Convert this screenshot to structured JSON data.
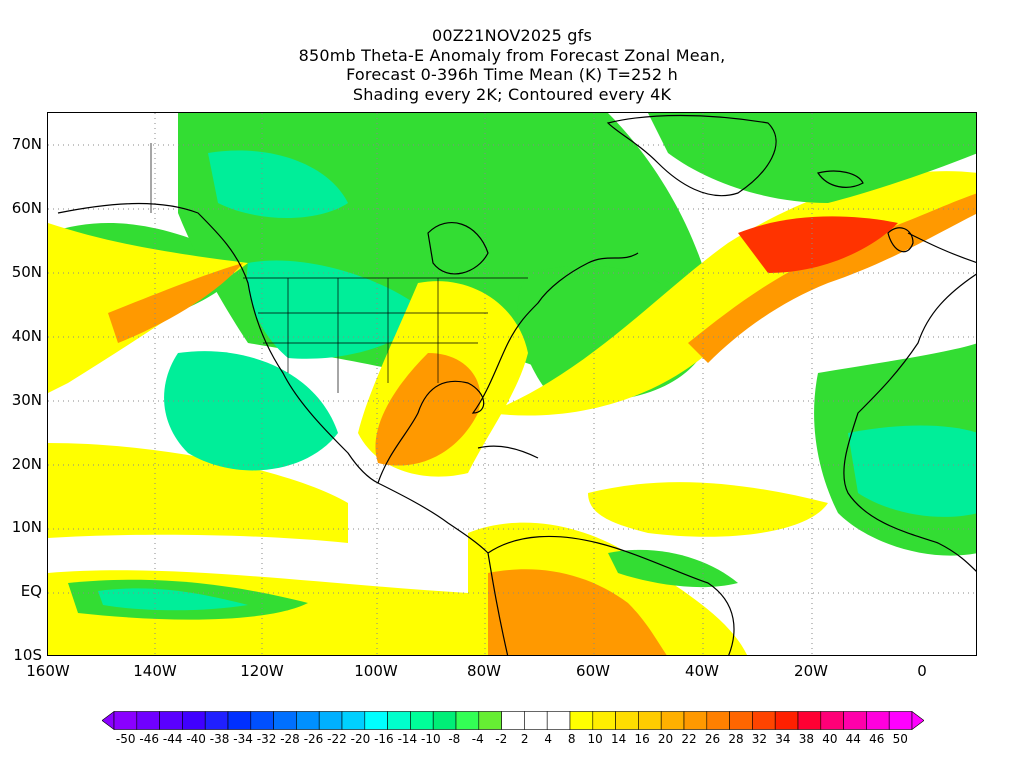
{
  "title": {
    "line1": "00Z21NOV2025 gfs",
    "line2": "850mb Theta-E Anomaly from Forecast Zonal Mean,",
    "line3": "Forecast 0-396h Time Mean (K) T=252 h",
    "line4": "Shading every 2K; Contoured every 4K"
  },
  "axes": {
    "lat_labels": [
      "70N",
      "60N",
      "50N",
      "40N",
      "30N",
      "20N",
      "10N",
      "EQ",
      "10S"
    ],
    "lon_labels": [
      "160W",
      "140W",
      "120W",
      "100W",
      "80W",
      "60W",
      "40W",
      "20W",
      "0"
    ]
  },
  "colorbar": {
    "labels": [
      "-50",
      "-46",
      "-44",
      "-40",
      "-38",
      "-34",
      "-32",
      "-28",
      "-26",
      "-22",
      "-20",
      "-16",
      "-14",
      "-10",
      "-8",
      "-4",
      "-2",
      "2",
      "4",
      "8",
      "10",
      "14",
      "16",
      "20",
      "22",
      "26",
      "28",
      "32",
      "34",
      "38",
      "40",
      "44",
      "46",
      "50"
    ],
    "colors": [
      "#8a00ff",
      "#7000ff",
      "#5a00ff",
      "#4000ff",
      "#2020ff",
      "#0030ff",
      "#0050ff",
      "#0070ff",
      "#0090ff",
      "#00b0ff",
      "#00d0ff",
      "#00ffff",
      "#00ffcc",
      "#00ff99",
      "#00ee77",
      "#33ff55",
      "#66ee33",
      "#ffffff",
      "#ffffff",
      "#ffffff",
      "#ffff00",
      "#ffee00",
      "#ffdd00",
      "#ffcc00",
      "#ffb000",
      "#ff9900",
      "#ff8000",
      "#ff6600",
      "#ff4400",
      "#ff2000",
      "#ff0033",
      "#ff0077",
      "#ff00aa",
      "#ff00dd",
      "#ff00ff"
    ],
    "end_left": "#8a00ff",
    "end_right": "#ff00ff"
  },
  "palette": {
    "green": "#33dd33",
    "lightgreen": "#66ee44",
    "teal": "#00ee99",
    "cyan": "#00ffcc",
    "yellow": "#ffff00",
    "gold": "#ffcc00",
    "orange": "#ff9900",
    "red": "#ff3300",
    "white": "#ffffff"
  }
}
